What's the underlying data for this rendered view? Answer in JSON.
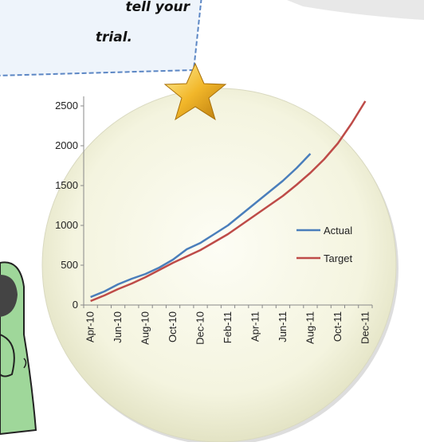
{
  "callout": {
    "lines": [
      "tell your",
      "trial."
    ]
  },
  "chart_data": {
    "type": "line",
    "categories": [
      "Apr-10",
      null,
      "Jun-10",
      null,
      "Aug-10",
      null,
      "Oct-10",
      null,
      "Dec-10",
      null,
      "Feb-11",
      null,
      "Apr-11",
      null,
      "Jun-11",
      null,
      "Aug-11",
      null,
      "Oct-11",
      null,
      "Dec-11"
    ],
    "series": [
      {
        "name": "Actual",
        "color": "#4a7ebb",
        "values": [
          100,
          170,
          260,
          330,
          390,
          470,
          570,
          700,
          780,
          890,
          1000,
          1140,
          1280,
          1420,
          1560,
          1720,
          1900,
          null,
          null,
          null,
          null
        ]
      },
      {
        "name": "Target",
        "color": "#be4b48",
        "values": [
          50,
          120,
          200,
          270,
          350,
          440,
          530,
          610,
          690,
          790,
          890,
          1010,
          1130,
          1250,
          1370,
          1510,
          1660,
          1830,
          2030,
          2280,
          2560
        ]
      }
    ],
    "ylim": [
      0,
      2600
    ],
    "yticks": [
      0,
      500,
      1000,
      1500,
      2000,
      2500
    ],
    "legend": "right"
  }
}
